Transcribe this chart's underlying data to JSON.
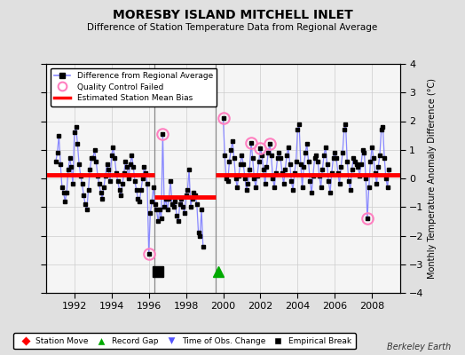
{
  "title": "MORESBY ISLAND MITCHELL INLET",
  "subtitle": "Difference of Station Temperature Data from Regional Average",
  "ylabel_right": "Monthly Temperature Anomaly Difference (°C)",
  "xlim": [
    1990.5,
    2009.5
  ],
  "ylim": [
    -4,
    4
  ],
  "yticks": [
    -4,
    -3,
    -2,
    -1,
    0,
    1,
    2,
    3,
    4
  ],
  "xticks": [
    1992,
    1994,
    1996,
    1998,
    2000,
    2002,
    2004,
    2006,
    2008
  ],
  "background_color": "#e0e0e0",
  "plot_bg_color": "#f5f5f5",
  "line_color": "#8888ff",
  "marker_color": "#000000",
  "bias_color": "#ff0000",
  "grid_color": "#cccccc",
  "break_line_color": "#888888",
  "segment1_bias": 0.12,
  "segment2_bias": -0.65,
  "segment3_bias": 0.12,
  "segment1_xstart": 1990.5,
  "segment1_xend": 1996.3,
  "segment2_xstart": 1996.3,
  "segment2_xend": 1999.6,
  "segment3_xstart": 1999.6,
  "segment3_xend": 2009.5,
  "break1_x": 1996.3,
  "break2_x": 1999.6,
  "empirical_break_x": 1996.5,
  "empirical_break_y": -3.25,
  "record_gap_x": 1999.75,
  "record_gap_y": -3.25,
  "qc_failed_points": [
    [
      1996.0,
      -2.65
    ],
    [
      1996.75,
      1.55
    ],
    [
      2000.0,
      2.1
    ],
    [
      2001.5,
      1.25
    ],
    [
      2002.0,
      1.05
    ],
    [
      2002.5,
      1.2
    ],
    [
      2007.75,
      -1.4
    ]
  ],
  "footer": "Berkeley Earth",
  "data_x": [
    1991.0,
    1991.083,
    1991.167,
    1991.25,
    1991.333,
    1991.417,
    1991.5,
    1991.583,
    1991.667,
    1991.75,
    1991.833,
    1991.917,
    1992.0,
    1992.083,
    1992.167,
    1992.25,
    1992.333,
    1992.417,
    1992.5,
    1992.583,
    1992.667,
    1992.75,
    1992.833,
    1992.917,
    1993.0,
    1993.083,
    1993.167,
    1993.25,
    1993.333,
    1993.417,
    1993.5,
    1993.583,
    1993.667,
    1993.75,
    1993.833,
    1993.917,
    1994.0,
    1994.083,
    1994.167,
    1994.25,
    1994.333,
    1994.417,
    1994.5,
    1994.583,
    1994.667,
    1994.75,
    1994.833,
    1994.917,
    1995.0,
    1995.083,
    1995.167,
    1995.25,
    1995.333,
    1995.417,
    1995.5,
    1995.583,
    1995.667,
    1995.75,
    1995.833,
    1995.917,
    1996.0,
    1996.083,
    1996.167,
    1996.25,
    1996.333,
    1996.417,
    1996.5,
    1996.583,
    1996.667,
    1996.75,
    1996.833,
    1996.917,
    1997.0,
    1997.083,
    1997.167,
    1997.25,
    1997.333,
    1997.417,
    1997.5,
    1997.583,
    1997.667,
    1997.75,
    1997.833,
    1997.917,
    1998.0,
    1998.083,
    1998.167,
    1998.25,
    1998.333,
    1998.417,
    1998.5,
    1998.583,
    1998.667,
    1998.75,
    1998.833,
    1998.917,
    2000.0,
    2000.083,
    2000.167,
    2000.25,
    2000.333,
    2000.417,
    2000.5,
    2000.583,
    2000.667,
    2000.75,
    2000.833,
    2000.917,
    2001.0,
    2001.083,
    2001.167,
    2001.25,
    2001.333,
    2001.417,
    2001.5,
    2001.583,
    2001.667,
    2001.75,
    2001.833,
    2001.917,
    2002.0,
    2002.083,
    2002.167,
    2002.25,
    2002.333,
    2002.417,
    2002.5,
    2002.583,
    2002.667,
    2002.75,
    2002.833,
    2002.917,
    2003.0,
    2003.083,
    2003.167,
    2003.25,
    2003.333,
    2003.417,
    2003.5,
    2003.583,
    2003.667,
    2003.75,
    2003.833,
    2003.917,
    2004.0,
    2004.083,
    2004.167,
    2004.25,
    2004.333,
    2004.417,
    2004.5,
    2004.583,
    2004.667,
    2004.75,
    2004.833,
    2004.917,
    2005.0,
    2005.083,
    2005.167,
    2005.25,
    2005.333,
    2005.417,
    2005.5,
    2005.583,
    2005.667,
    2005.75,
    2005.833,
    2005.917,
    2006.0,
    2006.083,
    2006.167,
    2006.25,
    2006.333,
    2006.417,
    2006.5,
    2006.583,
    2006.667,
    2006.75,
    2006.833,
    2006.917,
    2007.0,
    2007.083,
    2007.167,
    2007.25,
    2007.333,
    2007.417,
    2007.5,
    2007.583,
    2007.667,
    2007.75,
    2007.833,
    2007.917,
    2008.0,
    2008.083,
    2008.167,
    2008.25,
    2008.333,
    2008.417,
    2008.5,
    2008.583,
    2008.667,
    2008.75,
    2008.833,
    2008.917
  ],
  "data_y": [
    0.6,
    0.9,
    1.5,
    0.5,
    -0.3,
    -0.5,
    -0.8,
    -0.5,
    0.3,
    0.7,
    0.4,
    -0.2,
    1.6,
    1.8,
    1.2,
    0.5,
    0.1,
    -0.2,
    -0.6,
    -0.9,
    -1.1,
    -0.4,
    0.3,
    0.7,
    0.7,
    1.0,
    0.6,
    0.1,
    -0.2,
    -0.5,
    -0.7,
    -0.3,
    0.1,
    0.5,
    0.3,
    -0.1,
    0.8,
    1.1,
    0.7,
    0.2,
    -0.1,
    -0.4,
    -0.6,
    -0.2,
    0.2,
    0.6,
    0.4,
    0.0,
    0.5,
    0.8,
    0.4,
    -0.1,
    -0.4,
    -0.7,
    -0.8,
    -0.4,
    0.0,
    0.4,
    0.2,
    -0.2,
    -2.65,
    -1.2,
    -0.8,
    -0.3,
    -0.9,
    -1.1,
    -1.5,
    -1.1,
    -1.4,
    1.55,
    -1.0,
    -0.7,
    -1.1,
    -0.7,
    -0.1,
    -0.9,
    -1.0,
    -0.8,
    -1.3,
    -1.5,
    -0.9,
    -0.7,
    -1.0,
    -1.2,
    -0.6,
    -0.4,
    0.3,
    -1.0,
    -0.7,
    -0.5,
    -0.6,
    -0.9,
    -1.9,
    -2.0,
    -1.1,
    -2.4,
    2.1,
    0.8,
    0.0,
    -0.1,
    0.6,
    1.0,
    1.3,
    0.7,
    0.0,
    -0.3,
    0.1,
    0.5,
    0.8,
    0.5,
    0.0,
    -0.4,
    -0.2,
    0.3,
    1.25,
    0.7,
    0.0,
    -0.3,
    0.1,
    0.6,
    1.05,
    0.8,
    0.3,
    -0.2,
    0.4,
    0.9,
    1.2,
    0.8,
    0.0,
    -0.3,
    0.2,
    0.7,
    0.9,
    0.7,
    0.2,
    -0.2,
    0.3,
    0.8,
    1.1,
    0.5,
    -0.1,
    -0.4,
    0.2,
    0.6,
    1.7,
    1.9,
    0.5,
    -0.3,
    0.4,
    0.9,
    1.2,
    0.6,
    -0.1,
    -0.5,
    0.1,
    0.7,
    0.8,
    0.6,
    0.1,
    -0.3,
    0.3,
    0.8,
    1.1,
    0.5,
    -0.1,
    -0.5,
    0.2,
    0.7,
    0.9,
    0.7,
    0.2,
    -0.2,
    0.4,
    0.9,
    1.7,
    1.9,
    0.6,
    -0.1,
    -0.4,
    0.3,
    0.7,
    0.6,
    0.5,
    0.4,
    0.1,
    0.5,
    1.0,
    0.9,
    0.0,
    -1.4,
    -0.3,
    0.6,
    1.1,
    0.7,
    0.2,
    -0.2,
    0.4,
    0.8,
    1.7,
    1.8,
    0.7,
    0.0,
    -0.3,
    0.3
  ]
}
